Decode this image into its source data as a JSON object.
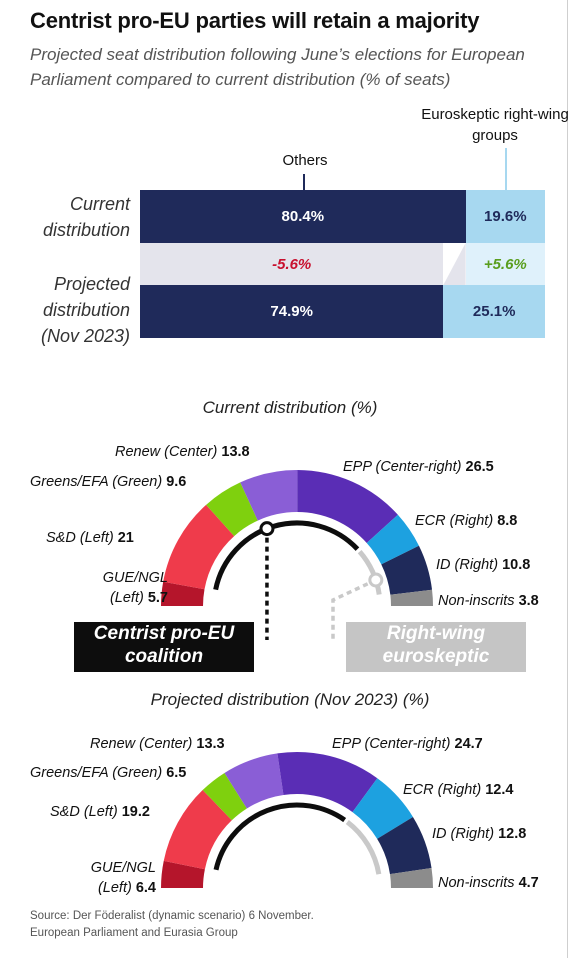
{
  "title": "Centrist pro-EU parties will retain a majority",
  "subtitle": "Projected seat distribution following June’s elections for European Parliament compared to current distribution (% of seats)",
  "source_lines": [
    "Source: Der Föderalist (dynamic scenario) 6 November.",
    "European Parliament and Eurasia Group"
  ],
  "colors": {
    "others": "#1f2a5a",
    "euroskeptic": "#a7d8f0",
    "negative": "#c8102e",
    "positive": "#5a9e1e",
    "GUE/NGL": "#b5152b",
    "S&D": "#ef3b4b",
    "Greens/EFA": "#7fd00e",
    "Renew": "#8a5ed6",
    "EPP": "#5a2db5",
    "ECR": "#1da1e0",
    "ID": "#1f2a5a",
    "NI": "#8c8c8c"
  },
  "chart_data": [
    {
      "type": "bar",
      "stacked": true,
      "orientation": "horizontal",
      "category_labels": {
        "others": "Others",
        "euroskeptic": "Euroskeptic right-wing groups"
      },
      "rows": [
        {
          "label": "Current distribution",
          "others": 80.4,
          "euroskeptic": 19.6,
          "others_text": "80.4%",
          "euroskeptic_text": "19.6%"
        },
        {
          "label": "Projected distribution (Nov 2023)",
          "others": 74.9,
          "euroskeptic": 25.1,
          "others_text": "74.9%",
          "euroskeptic_text": "25.1%"
        }
      ],
      "change": {
        "others_text": "-5.6%",
        "euroskeptic_text": "+5.6%"
      }
    },
    {
      "type": "pie",
      "shape": "semicircle",
      "title": "Current distribution (%)",
      "slices": [
        {
          "key": "GUE/NGL",
          "name": "GUE/NGL (Left)",
          "value": 5.7
        },
        {
          "key": "S&D",
          "name": "S&D (Left)",
          "value": 21.0
        },
        {
          "key": "Greens/EFA",
          "name": "Greens/EFA (Green)",
          "value": 9.6
        },
        {
          "key": "Renew",
          "name": "Renew (Center)",
          "value": 13.8
        },
        {
          "key": "EPP",
          "name": "EPP (Center-right)",
          "value": 26.5
        },
        {
          "key": "ECR",
          "name": "ECR (Right)",
          "value": 8.8
        },
        {
          "key": "ID",
          "name": "ID (Right)",
          "value": 10.8
        },
        {
          "key": "NI",
          "name": "Non-inscrits",
          "value": 3.8
        }
      ],
      "coalitions": [
        {
          "name": "Centrist pro-EU coalition",
          "members": [
            "S&D",
            "Renew",
            "EPP"
          ]
        },
        {
          "name": "Right-wing euroskeptic",
          "members": [
            "ECR",
            "ID"
          ]
        }
      ]
    },
    {
      "type": "pie",
      "shape": "semicircle",
      "title": "Projected distribution (Nov 2023) (%)",
      "slices": [
        {
          "key": "GUE/NGL",
          "name": "GUE/NGL (Left)",
          "value": 6.4
        },
        {
          "key": "S&D",
          "name": "S&D (Left)",
          "value": 19.2
        },
        {
          "key": "Greens/EFA",
          "name": "Greens/EFA (Green)",
          "value": 6.5
        },
        {
          "key": "Renew",
          "name": "Renew (Center)",
          "value": 13.3
        },
        {
          "key": "EPP",
          "name": "EPP (Center-right)",
          "value": 24.7
        },
        {
          "key": "ECR",
          "name": "ECR (Right)",
          "value": 12.4
        },
        {
          "key": "ID",
          "name": "ID (Right)",
          "value": 12.8
        },
        {
          "key": "NI",
          "name": "Non-inscrits",
          "value": 4.7
        }
      ],
      "coalitions": [
        {
          "members": [
            "S&D",
            "Renew",
            "EPP"
          ]
        },
        {
          "members": [
            "ECR",
            "ID"
          ]
        }
      ]
    }
  ]
}
